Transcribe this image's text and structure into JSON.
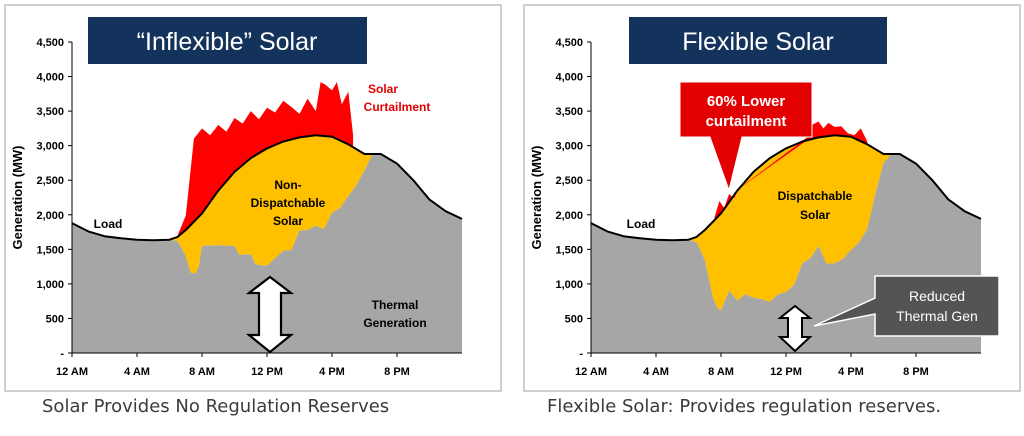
{
  "colors": {
    "thermal": "#a6a6a6",
    "solar": "#ffc000",
    "curtailment": "#ff0000",
    "load": "#000000",
    "banner": "#14335c",
    "callout_red": "#e20000",
    "callout_gray": "#545454",
    "frame": "#bfbfbf"
  },
  "left": {
    "banner": "“Inflexible” Solar",
    "caption": "Solar Provides No Regulation Reserves",
    "labels": {
      "load": "Load",
      "curtail_1": "Solar",
      "curtail_2": "Curtailment",
      "solar_1": "Non-",
      "solar_2": "Dispatchable",
      "solar_3": "Solar",
      "thermal_1": "Thermal",
      "thermal_2": "Generation"
    }
  },
  "right": {
    "banner": "Flexible Solar",
    "caption": "Flexible Solar: Provides regulation reserves.",
    "labels": {
      "load": "Load",
      "solar_1": "Dispatchable",
      "solar_2": "Solar",
      "callout_red_1": "60% Lower",
      "callout_red_2": "curtailment",
      "callout_gray_1": "Reduced",
      "callout_gray_2": "Thermal Gen"
    }
  },
  "chart_data": [
    {
      "type": "area",
      "title": "“Inflexible” Solar",
      "ylabel": "Generation (MW)",
      "ylim": [
        0,
        4500
      ],
      "yticks": [
        0,
        500,
        1000,
        1500,
        2000,
        2500,
        3000,
        3500,
        4000,
        4500
      ],
      "ytick_labels": [
        "-",
        "500",
        "1,000",
        "1,500",
        "2,000",
        "2,500",
        "3,000",
        "3,500",
        "4,000",
        "4,500"
      ],
      "xlim": [
        0,
        24
      ],
      "xticks": [
        0,
        4,
        8,
        12,
        16,
        20
      ],
      "xtick_labels": [
        "12 AM",
        "4 AM",
        "8 AM",
        "12 PM",
        "4 PM",
        "8 PM"
      ],
      "grid": false,
      "series": [
        {
          "name": "Load",
          "kind": "line",
          "x": [
            0,
            1,
            2,
            3,
            4,
            5,
            6,
            6.5,
            7,
            8,
            9,
            10,
            11,
            12,
            13,
            14,
            15,
            16,
            17,
            18,
            19,
            20,
            21,
            22,
            23,
            24
          ],
          "y": [
            1880,
            1760,
            1690,
            1660,
            1640,
            1630,
            1640,
            1680,
            1780,
            2020,
            2350,
            2620,
            2820,
            2960,
            3060,
            3120,
            3150,
            3130,
            3020,
            2880,
            2880,
            2740,
            2500,
            2220,
            2050,
            1940
          ]
        },
        {
          "name": "Thermal Generation",
          "kind": "area",
          "x": [
            0,
            1,
            2,
            3,
            4,
            5,
            6,
            6.5,
            7,
            7.3,
            7.6,
            7.8,
            8,
            9,
            10,
            10.3,
            11,
            11.3,
            12,
            13,
            13.5,
            14,
            14.5,
            15,
            15.5,
            16,
            16.5,
            17,
            17.5,
            18,
            18.5,
            19,
            20,
            21,
            22,
            23,
            24
          ],
          "y": [
            1880,
            1760,
            1690,
            1660,
            1640,
            1630,
            1640,
            1620,
            1400,
            1160,
            1150,
            1250,
            1550,
            1560,
            1550,
            1420,
            1430,
            1280,
            1260,
            1480,
            1490,
            1770,
            1780,
            1840,
            1790,
            2030,
            2100,
            2270,
            2430,
            2640,
            2880,
            2880,
            2740,
            2500,
            2220,
            2050,
            1940
          ]
        },
        {
          "name": "Solar Curtailment",
          "kind": "area",
          "x": [
            6.5,
            7,
            7.5,
            8,
            8.5,
            9,
            9.5,
            10,
            10.5,
            11,
            11.5,
            12,
            12.5,
            13,
            13.5,
            14,
            14.5,
            15,
            15.3,
            15.6,
            16,
            16.3,
            16.6,
            17,
            17.3
          ],
          "y": [
            1700,
            1990,
            3100,
            3250,
            3150,
            3300,
            3200,
            3400,
            3320,
            3500,
            3380,
            3550,
            3480,
            3650,
            3560,
            3460,
            3680,
            3500,
            3920,
            3880,
            3800,
            3920,
            3600,
            3780,
            3150
          ]
        }
      ],
      "annotations": [
        "Load",
        "Solar Curtailment",
        "Non-Dispatchable Solar",
        "Thermal Generation"
      ]
    },
    {
      "type": "area",
      "title": "Flexible Solar",
      "ylabel": "Generation (MW)",
      "ylim": [
        0,
        4500
      ],
      "yticks": [
        0,
        500,
        1000,
        1500,
        2000,
        2500,
        3000,
        3500,
        4000,
        4500
      ],
      "ytick_labels": [
        "-",
        "500",
        "1,000",
        "1,500",
        "2,000",
        "2,500",
        "3,000",
        "3,500",
        "4,000",
        "4,500"
      ],
      "xlim": [
        0,
        24
      ],
      "xticks": [
        0,
        4,
        8,
        12,
        16,
        20
      ],
      "xtick_labels": [
        "12 AM",
        "4 AM",
        "8 AM",
        "12 PM",
        "4 PM",
        "8 PM"
      ],
      "grid": false,
      "series": [
        {
          "name": "Load",
          "kind": "line",
          "x": [
            0,
            1,
            2,
            3,
            4,
            5,
            6,
            6.5,
            7,
            8,
            9,
            10,
            11,
            12,
            13,
            14,
            15,
            16,
            17,
            18,
            19,
            20,
            21,
            22,
            23,
            24
          ],
          "y": [
            1880,
            1760,
            1690,
            1660,
            1640,
            1630,
            1640,
            1680,
            1780,
            2020,
            2350,
            2620,
            2820,
            2960,
            3060,
            3120,
            3150,
            3130,
            3020,
            2880,
            2880,
            2740,
            2500,
            2220,
            2050,
            1940
          ]
        },
        {
          "name": "Thermal Generation",
          "kind": "area",
          "x": [
            0,
            1,
            2,
            3,
            4,
            5,
            6,
            6.5,
            7,
            7.5,
            7.8,
            8,
            8.5,
            9,
            9.5,
            10,
            10.5,
            11,
            11.5,
            12,
            12.5,
            13,
            13.5,
            14,
            14.5,
            15,
            15.5,
            16,
            16.5,
            17,
            17.5,
            18,
            18.5,
            19,
            20,
            21,
            22,
            23,
            24
          ],
          "y": [
            1880,
            1760,
            1690,
            1660,
            1640,
            1630,
            1640,
            1600,
            1350,
            800,
            640,
            620,
            900,
            760,
            850,
            800,
            780,
            740,
            850,
            880,
            990,
            1300,
            1370,
            1550,
            1290,
            1300,
            1360,
            1490,
            1600,
            1800,
            2300,
            2750,
            2880,
            2880,
            2740,
            2500,
            2220,
            2050,
            1940
          ]
        },
        {
          "name": "Solar Curtailment",
          "kind": "area",
          "x": [
            7.6,
            7.9,
            8.2,
            8.5,
            8.8,
            9.1,
            13.3,
            13.6,
            14,
            14.3,
            14.6,
            15,
            15.4,
            15.8,
            16.2,
            16.6,
            17.0
          ],
          "y": [
            1960,
            2200,
            2100,
            2300,
            2240,
            2380,
            3120,
            3300,
            3350,
            3250,
            3330,
            3270,
            3280,
            3180,
            3150,
            3250,
            3060
          ]
        }
      ],
      "annotations": [
        "Load",
        "Dispatchable Solar",
        "60% Lower curtailment",
        "Reduced Thermal Gen"
      ]
    }
  ]
}
